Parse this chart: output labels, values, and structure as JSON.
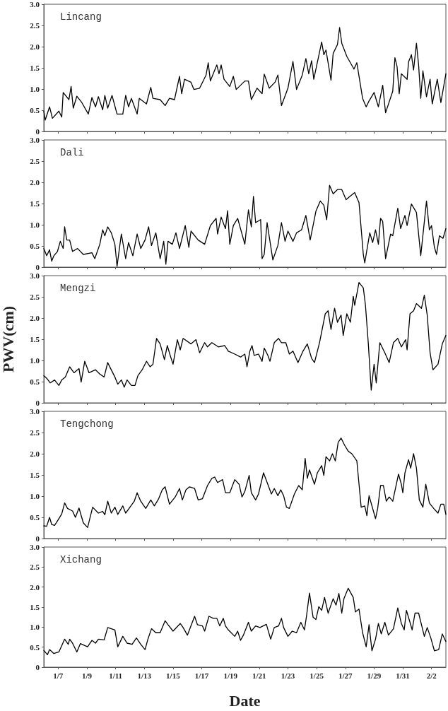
{
  "chart_data": [
    {
      "type": "line",
      "title": "Lincang",
      "color": "#000000",
      "marker": "none",
      "line_style": "solid",
      "tick_labels": "y",
      "xlim": [
        "--01-06T00:00",
        "--02-03T00:00"
      ],
      "xticks": [
        {
          "value": "--01-07T00:00",
          "label": "1/7"
        },
        {
          "value": "--01-09T00:00",
          "label": "1/9"
        },
        {
          "value": "--01-11T00:00",
          "label": "1/11"
        },
        {
          "value": "--01-13T00:00",
          "label": "1/13"
        },
        {
          "value": "--01-15T00:00",
          "label": "1/15"
        },
        {
          "value": "--01-17T00:00",
          "label": "1/17"
        },
        {
          "value": "--01-19T00:00",
          "label": "1/19"
        },
        {
          "value": "--01-21T00:00",
          "label": "1/21"
        },
        {
          "value": "--01-23T00:00",
          "label": "1/23"
        },
        {
          "value": "--01-25T00:00",
          "label": "1/25"
        },
        {
          "value": "--01-27T00:00",
          "label": "1/27"
        },
        {
          "value": "--01-29T00:00",
          "label": "1/29"
        },
        {
          "value": "--01-31T00:00",
          "label": "1/31"
        },
        {
          "value": "--02-02T00:00",
          "label": "2/2"
        }
      ],
      "ylim": [
        0,
        3
      ],
      "yticks": [
        0,
        0.5,
        {
          "value": 1,
          "label": "1.0"
        },
        1.5,
        {
          "value": 2,
          "label": "2.0"
        },
        2.5,
        {
          "value": 3,
          "label": "3.0"
        }
      ],
      "x": [
        "--01-06T00:00",
        "--01-06T02:24",
        "--01-06T09:36",
        "--01-06T14:24",
        "--01-07T01:12",
        "--01-07T06:00",
        "--01-07T08:24",
        "--01-07T18:00",
        "--01-07T21:36",
        "--01-08T01:12",
        "--01-08T07:12",
        "--01-08T15:36",
        "--01-09T02:24",
        "--01-09T08:24",
        "--01-09T14:24",
        "--01-09T19:12",
        "--01-10T02:24",
        "--01-10T06:00",
        "--01-10T10:48",
        "--01-10T18:00",
        "--01-11T02:24",
        "--01-11T12:00",
        "--01-11T16:48",
        "--01-11T21:36",
        "--01-12T02:24",
        "--01-12T12:00",
        "--01-12T15:36",
        "--01-13T03:36",
        "--01-13T10:48",
        "--01-13T14:24",
        "--01-14T02:24",
        "--01-14T10:48",
        "--01-14T18:00",
        "--01-15T02:24",
        "--01-15T10:48",
        "--01-15T14:24",
        "--01-15T19:12",
        "--01-16T06:00",
        "--01-16T10:48",
        "--01-16T20:24",
        "--01-17T07:12",
        "--01-17T10:48",
        "--01-17T14:24",
        "--01-18T01:12",
        "--01-18T04:48",
        "--01-18T08:24",
        "--01-18T13:12",
        "--01-18T22:48",
        "--01-19T04:48",
        "--01-19T09:36",
        "--01-20T00:00",
        "--01-20T06:00",
        "--01-20T10:48",
        "--01-20T20:24",
        "--01-21T04:48",
        "--01-21T08:24",
        "--01-21T16:48",
        "--01-22T02:24",
        "--01-22T07:12",
        "--01-22T13:12",
        "--01-23T00:00",
        "--01-23T08:24",
        "--01-23T14:24",
        "--01-24T00:00",
        "--01-24T06:00",
        "--01-24T10:48",
        "--01-24T15:36",
        "--01-24T19:12",
        "--01-25T04:48",
        "--01-25T08:24",
        "--01-25T12:00",
        "--01-25T15:36",
        "--01-26T00:00",
        "--01-26T03:36",
        "--01-26T10:48",
        "--01-26T14:24",
        "--01-26T18:00",
        "--01-27T02:24",
        "--01-27T14:24",
        "--01-27T19:12",
        "--01-28T04:48",
        "--01-28T10:48",
        "--01-28T15:36",
        "--01-29T00:00",
        "--01-29T07:12",
        "--01-29T14:24",
        "--01-29T19:12",
        "--01-30T07:12",
        "--01-30T10:48",
        "--01-30T14:24",
        "--01-30T18:00",
        "--01-30T21:36",
        "--01-31T07:12",
        "--01-31T09:36",
        "--01-31T14:24",
        "--01-31T18:00",
        "--01-31T22:48",
        "--02-01T02:24",
        "--02-01T06:00",
        "--02-01T09:36",
        "--02-01T15:36",
        "--02-01T21:36",
        "--02-02T01:12",
        "--02-02T09:36",
        "--02-02T15:36",
        "--02-03T00:00"
      ],
      "values": [
        0.48,
        0.27,
        0.58,
        0.31,
        0.48,
        0.34,
        0.92,
        0.75,
        1.06,
        0.55,
        0.83,
        0.68,
        0.41,
        0.8,
        0.58,
        0.82,
        0.51,
        0.85,
        0.55,
        0.85,
        0.41,
        0.41,
        0.85,
        0.58,
        0.78,
        0.41,
        0.78,
        0.65,
        1.04,
        0.78,
        0.75,
        0.61,
        0.78,
        0.75,
        1.3,
        0.89,
        1.23,
        1.16,
        0.99,
        1.02,
        1.33,
        1.62,
        1.19,
        1.57,
        1.36,
        1.57,
        1.23,
        1.06,
        1.3,
        0.99,
        1.19,
        1.19,
        0.75,
        1.02,
        0.89,
        1.35,
        1.02,
        1.16,
        1.33,
        0.61,
        1.02,
        1.65,
        0.99,
        1.33,
        1.72,
        1.36,
        1.67,
        1.23,
        1.87,
        2.11,
        1.81,
        1.92,
        1.21,
        1.84,
        2.05,
        2.45,
        2.08,
        1.77,
        1.47,
        1.62,
        0.78,
        0.58,
        0.72,
        0.92,
        0.58,
        1.09,
        0.44,
        0.95,
        1.74,
        1.53,
        0.89,
        1.36,
        1.23,
        1.64,
        1.81,
        1.45,
        2.08,
        1.57,
        0.78,
        1.43,
        0.82,
        1.23,
        0.65,
        1.23,
        0.68,
        1.36
      ]
    },
    {
      "type": "line",
      "title": "Dali",
      "color": "#000000",
      "marker": "none",
      "line_style": "solid",
      "tick_labels": "y",
      "xlim": [
        "--01-06T00:00",
        "--02-03T00:00"
      ],
      "xticks": [
        {
          "value": "--01-07T00:00",
          "label": "1/7"
        },
        {
          "value": "--01-09T00:00",
          "label": "1/9"
        },
        {
          "value": "--01-11T00:00",
          "label": "1/11"
        },
        {
          "value": "--01-13T00:00",
          "label": "1/13"
        },
        {
          "value": "--01-15T00:00",
          "label": "1/15"
        },
        {
          "value": "--01-17T00:00",
          "label": "1/17"
        },
        {
          "value": "--01-19T00:00",
          "label": "1/19"
        },
        {
          "value": "--01-21T00:00",
          "label": "1/21"
        },
        {
          "value": "--01-23T00:00",
          "label": "1/23"
        },
        {
          "value": "--01-25T00:00",
          "label": "1/25"
        },
        {
          "value": "--01-27T00:00",
          "label": "1/27"
        },
        {
          "value": "--01-29T00:00",
          "label": "1/29"
        },
        {
          "value": "--01-31T00:00",
          "label": "1/31"
        },
        {
          "value": "--02-02T00:00",
          "label": "2/2"
        }
      ],
      "ylim": [
        0,
        3
      ],
      "yticks": [
        0,
        0.5,
        {
          "value": 1,
          "label": "1.0"
        },
        1.5,
        {
          "value": 2,
          "label": "2.0"
        },
        2.5,
        {
          "value": 3,
          "label": "3.0"
        }
      ],
      "x": [
        "--01-06T00:00",
        "--01-06T04:48",
        "--01-06T09:36",
        "--01-06T13:12",
        "--01-06T16:48",
        "--01-06T22:48",
        "--01-07T03:36",
        "--01-07T08:24",
        "--01-07T10:48",
        "--01-07T14:24",
        "--01-07T19:12",
        "--01-08T00:00",
        "--01-08T08:24",
        "--01-08T18:00",
        "--01-09T08:24",
        "--01-09T13:12",
        "--01-09T21:36",
        "--01-10T02:24",
        "--01-10T06:00",
        "--01-10T10:48",
        "--01-10T16:48",
        "--01-10T22:48",
        "--01-11T02:24",
        "--01-11T09:36",
        "--01-11T16:48",
        "--01-11T21:36",
        "--01-12T04:48",
        "--01-12T12:00",
        "--01-12T18:00",
        "--01-13T01:12",
        "--01-13T07:12",
        "--01-13T12:00",
        "--01-13T19:12",
        "--01-14T02:24",
        "--01-14T08:24",
        "--01-14T12:00",
        "--01-14T15:36",
        "--01-14T22:48",
        "--01-15T04:48",
        "--01-15T10:48",
        "--01-15T20:24",
        "--01-16T02:24",
        "--01-16T06:00",
        "--01-16T18:00",
        "--01-17T04:48",
        "--01-17T14:24",
        "--01-18T00:00",
        "--01-18T02:24",
        "--01-18T08:24",
        "--01-18T15:36",
        "--01-18T19:12",
        "--01-18T22:48",
        "--01-19T04:48",
        "--01-19T12:00",
        "--01-20T00:00",
        "--01-20T06:00",
        "--01-20T10:48",
        "--01-20T14:24",
        "--01-20T18:00",
        "--01-21T02:24",
        "--01-21T04:48",
        "--01-21T08:24",
        "--01-21T13:12",
        "--01-21T22:48",
        "--01-22T07:12",
        "--01-22T13:12",
        "--01-22T19:12",
        "--01-23T00:00",
        "--01-23T08:24",
        "--01-23T14:24",
        "--01-23T22:48",
        "--01-24T06:00",
        "--01-24T13:12",
        "--01-24T22:48",
        "--01-25T06:00",
        "--01-25T12:00",
        "--01-25T16:48",
        "--01-25T21:36",
        "--01-26T03:36",
        "--01-26T10:48",
        "--01-26T18:00",
        "--01-27T01:12",
        "--01-27T09:36",
        "--01-27T15:36",
        "--01-27T22:48",
        "--01-28T06:00",
        "--01-28T08:24",
        "--01-28T16:48",
        "--01-28T21:36",
        "--01-29T02:24",
        "--01-29T07:12",
        "--01-29T10:48",
        "--01-29T14:24",
        "--01-29T19:12",
        "--01-30T03:36",
        "--01-30T07:12",
        "--01-30T15:36",
        "--01-30T20:24",
        "--01-31T03:36",
        "--01-31T07:12",
        "--01-31T14:24",
        "--01-31T22:48",
        "--02-01T06:00",
        "--02-01T10:48",
        "--02-01T15:36",
        "--02-01T20:24",
        "--02-02T00:00",
        "--02-02T04:48",
        "--02-02T08:24",
        "--02-02T13:12",
        "--02-02T19:12",
        "--02-03T00:00"
      ],
      "values": [
        0.44,
        0.27,
        0.41,
        0.14,
        0.27,
        0.37,
        0.61,
        0.44,
        0.95,
        0.64,
        0.64,
        0.37,
        0.44,
        0.3,
        0.34,
        0.2,
        0.54,
        0.88,
        0.74,
        0.95,
        0.81,
        0.54,
        0.02,
        0.78,
        0.2,
        0.58,
        0.27,
        0.78,
        0.44,
        0.64,
        0.95,
        0.51,
        0.81,
        0.2,
        0.61,
        0.07,
        0.61,
        0.54,
        0.81,
        0.44,
        0.98,
        0.47,
        0.85,
        0.64,
        0.54,
        0.98,
        1.15,
        0.78,
        1.18,
        0.91,
        1.33,
        0.54,
        0.98,
        1.15,
        0.54,
        1.35,
        0.95,
        1.67,
        1.05,
        1.12,
        0.2,
        0.3,
        1.05,
        0.17,
        0.51,
        1.05,
        0.61,
        0.85,
        0.61,
        0.81,
        0.88,
        1.22,
        0.64,
        1.32,
        1.56,
        1.46,
        1.12,
        1.93,
        1.73,
        1.83,
        1.83,
        1.59,
        1.69,
        1.76,
        1.52,
        0.3,
        0.1,
        0.81,
        0.58,
        0.88,
        0.54,
        1.15,
        1.08,
        0.2,
        0.78,
        0.74,
        1.39,
        0.91,
        1.22,
        0.98,
        1.49,
        1.29,
        0.27,
        0.91,
        1.56,
        0.88,
        0.98,
        0.47,
        0.3,
        0.74,
        0.68,
        0.91
      ]
    },
    {
      "type": "line",
      "title": "Mengzi",
      "ylabel": "PWV(cm)",
      "color": "#000000",
      "marker": "none",
      "line_style": "solid",
      "tick_labels": "y",
      "xlim": [
        "--01-06T00:00",
        "--02-03T00:00"
      ],
      "xticks": [
        {
          "value": "--01-07T00:00",
          "label": "1/7"
        },
        {
          "value": "--01-09T00:00",
          "label": "1/9"
        },
        {
          "value": "--01-11T00:00",
          "label": "1/11"
        },
        {
          "value": "--01-13T00:00",
          "label": "1/13"
        },
        {
          "value": "--01-15T00:00",
          "label": "1/15"
        },
        {
          "value": "--01-17T00:00",
          "label": "1/17"
        },
        {
          "value": "--01-19T00:00",
          "label": "1/19"
        },
        {
          "value": "--01-21T00:00",
          "label": "1/21"
        },
        {
          "value": "--01-23T00:00",
          "label": "1/23"
        },
        {
          "value": "--01-25T00:00",
          "label": "1/25"
        },
        {
          "value": "--01-27T00:00",
          "label": "1/27"
        },
        {
          "value": "--01-29T00:00",
          "label": "1/29"
        },
        {
          "value": "--01-31T00:00",
          "label": "1/31"
        },
        {
          "value": "--02-02T00:00",
          "label": "2/2"
        }
      ],
      "ylim": [
        0,
        3
      ],
      "yticks": [
        0,
        0.5,
        {
          "value": 1,
          "label": "1.0"
        },
        1.5,
        {
          "value": 2,
          "label": "2.0"
        },
        2.5,
        {
          "value": 3,
          "label": "3.0"
        }
      ],
      "x": [
        "--01-06T00:00",
        "--01-06T04:48",
        "--01-06T10:48",
        "--01-06T18:00",
        "--01-07T01:12",
        "--01-07T06:00",
        "--01-07T12:00",
        "--01-07T19:12",
        "--01-08T02:24",
        "--01-08T10:48",
        "--01-08T14:24",
        "--01-08T20:24",
        "--01-09T03:36",
        "--01-09T14:24",
        "--01-09T21:36",
        "--01-10T04:48",
        "--01-10T10:48",
        "--01-10T15:36",
        "--01-10T22:48",
        "--01-11T03:36",
        "--01-11T09:36",
        "--01-11T14:24",
        "--01-11T19:12",
        "--01-12T02:24",
        "--01-12T08:24",
        "--01-12T13:12",
        "--01-12T20:24",
        "--01-13T03:36",
        "--01-13T09:36",
        "--01-13T14:24",
        "--01-13T20:24",
        "--01-14T02:24",
        "--01-14T09:36",
        "--01-14T14:24",
        "--01-14T19:12",
        "--01-15T00:00",
        "--01-15T07:12",
        "--01-15T12:00",
        "--01-15T16:48",
        "--01-16T06:00",
        "--01-16T14:24",
        "--01-16T20:24",
        "--01-17T04:48",
        "--01-17T09:36",
        "--01-17T16:48",
        "--01-18T03:36",
        "--01-18T14:24",
        "--01-18T20:24",
        "--01-19T07:12",
        "--01-19T16:48",
        "--01-20T00:00",
        "--01-20T03:36",
        "--01-20T08:24",
        "--01-20T12:00",
        "--01-20T15:36",
        "--01-20T22:48",
        "--01-21T04:48",
        "--01-21T08:24",
        "--01-21T14:24",
        "--01-21T18:00",
        "--01-22T01:12",
        "--01-22T08:24",
        "--01-22T13:12",
        "--01-22T20:24",
        "--01-23T02:24",
        "--01-23T08:24",
        "--01-23T16:48",
        "--01-24T01:12",
        "--01-24T08:24",
        "--01-24T15:36",
        "--01-24T20:24",
        "--01-25T04:48",
        "--01-25T14:24",
        "--01-25T19:12",
        "--01-26T00:00",
        "--01-26T06:00",
        "--01-26T10:48",
        "--01-26T16:48",
        "--01-26T20:24",
        "--01-27T02:24",
        "--01-27T08:24",
        "--01-27T13:12",
        "--01-27T15:36",
        "--01-27T22:48",
        "--01-28T06:00",
        "--01-28T09:36",
        "--01-28T14:24",
        "--01-28T19:12",
        "--01-29T00:00",
        "--01-29T03:36",
        "--01-29T09:36",
        "--01-29T18:00",
        "--01-30T01:12",
        "--01-30T08:24",
        "--01-30T15:36",
        "--01-30T21:36",
        "--01-31T04:48",
        "--01-31T07:12",
        "--01-31T12:00",
        "--01-31T18:00",
        "--01-31T22:48",
        "--02-01T07:12",
        "--02-01T12:00",
        "--02-01T16:48",
        "--02-01T21:36",
        "--02-02T02:24",
        "--02-02T10:48",
        "--02-02T18:00",
        "--02-03T00:00"
      ],
      "values": [
        0.64,
        0.58,
        0.47,
        0.54,
        0.41,
        0.54,
        0.61,
        0.85,
        0.71,
        0.81,
        0.49,
        0.98,
        0.71,
        0.78,
        0.68,
        0.61,
        0.95,
        0.81,
        0.61,
        0.44,
        0.54,
        0.37,
        0.54,
        0.41,
        0.41,
        0.64,
        0.78,
        0.98,
        0.85,
        0.91,
        1.52,
        1.39,
        1.02,
        1.35,
        1.12,
        0.91,
        1.49,
        1.25,
        1.52,
        1.39,
        1.49,
        1.18,
        1.42,
        1.32,
        1.42,
        1.32,
        1.35,
        1.22,
        1.15,
        1.08,
        1.15,
        0.85,
        1.22,
        1.35,
        1.12,
        1.15,
        0.98,
        1.29,
        1.12,
        0.98,
        1.42,
        1.52,
        1.42,
        1.42,
        1.15,
        1.22,
        0.95,
        1.22,
        1.39,
        1.05,
        0.95,
        1.42,
        2.1,
        2.17,
        1.73,
        2.23,
        1.9,
        2.07,
        1.59,
        2.1,
        1.9,
        2.51,
        2.3,
        2.84,
        2.71,
        2.3,
        1.39,
        0.3,
        0.91,
        0.47,
        1.42,
        1.18,
        0.95,
        1.42,
        1.52,
        1.32,
        1.49,
        1.25,
        2.1,
        2.17,
        2.34,
        2.23,
        2.54,
        2.07,
        1.18,
        0.78,
        0.91,
        1.39,
        1.59
      ]
    },
    {
      "type": "line",
      "title": "Tengchong",
      "color": "#000000",
      "marker": "none",
      "line_style": "solid",
      "tick_labels": "y",
      "xlim": [
        "--01-06T00:00",
        "--02-03T00:00"
      ],
      "xticks": [
        {
          "value": "--01-07T00:00",
          "label": "1/7"
        },
        {
          "value": "--01-09T00:00",
          "label": "1/9"
        },
        {
          "value": "--01-11T00:00",
          "label": "1/11"
        },
        {
          "value": "--01-13T00:00",
          "label": "1/13"
        },
        {
          "value": "--01-15T00:00",
          "label": "1/15"
        },
        {
          "value": "--01-17T00:00",
          "label": "1/17"
        },
        {
          "value": "--01-19T00:00",
          "label": "1/19"
        },
        {
          "value": "--01-21T00:00",
          "label": "1/21"
        },
        {
          "value": "--01-23T00:00",
          "label": "1/23"
        },
        {
          "value": "--01-25T00:00",
          "label": "1/25"
        },
        {
          "value": "--01-27T00:00",
          "label": "1/27"
        },
        {
          "value": "--01-29T00:00",
          "label": "1/29"
        },
        {
          "value": "--01-31T00:00",
          "label": "1/31"
        },
        {
          "value": "--02-02T00:00",
          "label": "2/2"
        }
      ],
      "ylim": [
        0,
        3
      ],
      "yticks": [
        0,
        0.5,
        {
          "value": 1,
          "label": "1.0"
        },
        1.5,
        {
          "value": 2,
          "label": "2.0"
        },
        2.5,
        {
          "value": 3,
          "label": "3.0"
        }
      ],
      "x": [
        "--01-06T00:00",
        "--01-06T04:48",
        "--01-06T09:36",
        "--01-06T13:12",
        "--01-06T18:00",
        "--01-07T01:12",
        "--01-07T06:00",
        "--01-07T10:48",
        "--01-07T15:36",
        "--01-08T00:00",
        "--01-08T04:48",
        "--01-08T10:48",
        "--01-08T18:00",
        "--01-09T01:12",
        "--01-09T09:36",
        "--01-09T19:12",
        "--01-10T02:24",
        "--01-10T06:00",
        "--01-10T10:48",
        "--01-10T16:48",
        "--01-10T22:48",
        "--01-11T03:36",
        "--01-11T12:00",
        "--01-11T16:48",
        "--01-12T00:00",
        "--01-12T07:12",
        "--01-12T12:00",
        "--01-12T18:00",
        "--01-13T02:24",
        "--01-13T10:48",
        "--01-13T16:48",
        "--01-14T00:00",
        "--01-14T06:00",
        "--01-14T10:48",
        "--01-14T18:00",
        "--01-15T03:36",
        "--01-15T10:48",
        "--01-15T15:36",
        "--01-15T21:36",
        "--01-16T03:36",
        "--01-16T12:00",
        "--01-16T18:00",
        "--01-17T01:12",
        "--01-17T09:36",
        "--01-17T16:48",
        "--01-17T21:36",
        "--01-18T02:24",
        "--01-18T10:48",
        "--01-18T15:36",
        "--01-18T22:48",
        "--01-19T07:12",
        "--01-19T14:24",
        "--01-19T19:12",
        "--01-20T00:00",
        "--01-20T07:12",
        "--01-20T10:48",
        "--01-20T18:00",
        "--01-20T22:48",
        "--01-21T07:12",
        "--01-21T14:24",
        "--01-21T20:24",
        "--01-22T01:12",
        "--01-22T07:12",
        "--01-22T12:00",
        "--01-22T16:48",
        "--01-22T21:36",
        "--01-23T02:24",
        "--01-23T10:48",
        "--01-23T18:00",
        "--01-24T00:00",
        "--01-24T04:48",
        "--01-24T08:24",
        "--01-24T12:00",
        "--01-24T20:24",
        "--01-25T01:12",
        "--01-25T08:24",
        "--01-25T12:00",
        "--01-25T15:36",
        "--01-25T21:36",
        "--01-26T02:24",
        "--01-26T07:12",
        "--01-26T12:00",
        "--01-26T16:48",
        "--01-26T22:48",
        "--01-27T04:48",
        "--01-27T10:48",
        "--01-27T19:12",
        "--01-28T02:24",
        "--01-28T08:24",
        "--01-28T12:00",
        "--01-28T15:36",
        "--01-28T20:24",
        "--01-29T02:24",
        "--01-29T06:00",
        "--01-29T10:48",
        "--01-29T15:36",
        "--01-29T20:24",
        "--01-30T01:12",
        "--01-30T07:12",
        "--01-30T16:48",
        "--01-30T21:36",
        "--01-31T00:00",
        "--01-31T03:36",
        "--01-31T09:36",
        "--01-31T13:12",
        "--01-31T18:00",
        "--01-31T22:48",
        "--02-01T03:36",
        "--02-01T09:36",
        "--02-01T14:24",
        "--02-01T20:24",
        "--02-02T03:36",
        "--02-02T10:48",
        "--02-02T15:36",
        "--02-02T20:24",
        "--02-03T00:00"
      ],
      "values": [
        0.3,
        0.29,
        0.5,
        0.33,
        0.31,
        0.47,
        0.58,
        0.84,
        0.71,
        0.65,
        0.5,
        0.72,
        0.37,
        0.26,
        0.74,
        0.6,
        0.64,
        0.56,
        0.88,
        0.6,
        0.74,
        0.57,
        0.77,
        0.6,
        0.74,
        0.88,
        1.08,
        0.88,
        0.71,
        0.91,
        0.77,
        0.94,
        1.15,
        1.22,
        0.81,
        0.98,
        1.18,
        0.91,
        1.15,
        1.22,
        1.18,
        0.91,
        0.94,
        1.25,
        1.42,
        1.45,
        1.32,
        1.39,
        1.08,
        1.08,
        1.39,
        1.28,
        0.98,
        1.11,
        1.49,
        1.08,
        0.91,
        1.05,
        1.55,
        1.28,
        1.05,
        1.18,
        1.01,
        1.15,
        1.01,
        0.74,
        0.71,
        1.05,
        1.25,
        1.15,
        1.89,
        1.42,
        1.62,
        1.28,
        1.55,
        1.72,
        1.49,
        1.93,
        1.83,
        2.0,
        1.83,
        2.27,
        2.37,
        2.2,
        2.06,
        2.0,
        1.83,
        0.74,
        0.77,
        0.54,
        1.01,
        0.77,
        0.47,
        0.71,
        1.25,
        1.25,
        0.88,
        0.98,
        0.88,
        1.52,
        1.28,
        1.08,
        1.55,
        1.86,
        1.66,
        2.0,
        1.66,
        0.91,
        0.74,
        1.28,
        0.84,
        0.71,
        0.6,
        0.81,
        0.81,
        0.57
      ]
    },
    {
      "type": "line",
      "title": "Xichang",
      "xlabel": "Date",
      "color": "#000000",
      "marker": "none",
      "line_style": "solid",
      "xlim": [
        "--01-06T00:00",
        "--02-03T00:00"
      ],
      "xticks": [
        {
          "value": "--01-07T00:00",
          "label": "1/7"
        },
        {
          "value": "--01-09T00:00",
          "label": "1/9"
        },
        {
          "value": "--01-11T00:00",
          "label": "1/11"
        },
        {
          "value": "--01-13T00:00",
          "label": "1/13"
        },
        {
          "value": "--01-15T00:00",
          "label": "1/15"
        },
        {
          "value": "--01-17T00:00",
          "label": "1/17"
        },
        {
          "value": "--01-19T00:00",
          "label": "1/19"
        },
        {
          "value": "--01-21T00:00",
          "label": "1/21"
        },
        {
          "value": "--01-23T00:00",
          "label": "1/23"
        },
        {
          "value": "--01-25T00:00",
          "label": "1/25"
        },
        {
          "value": "--01-27T00:00",
          "label": "1/27"
        },
        {
          "value": "--01-29T00:00",
          "label": "1/29"
        },
        {
          "value": "--01-31T00:00",
          "label": "1/31"
        },
        {
          "value": "--02-02T00:00",
          "label": "2/2"
        }
      ],
      "ylim": [
        0,
        3
      ],
      "yticks": [
        0,
        0.5,
        {
          "value": 1,
          "label": "1.0"
        },
        1.5,
        {
          "value": 2,
          "label": "2.0"
        },
        2.5,
        {
          "value": 3,
          "label": "3.0"
        }
      ],
      "x": [
        "--01-06T00:00",
        "--01-06T06:00",
        "--01-06T09:36",
        "--01-06T16:48",
        "--01-07T01:12",
        "--01-07T06:00",
        "--01-07T10:48",
        "--01-07T16:48",
        "--01-07T19:12",
        "--01-08T00:00",
        "--01-08T07:12",
        "--01-08T13:12",
        "--01-08T20:24",
        "--01-09T01:12",
        "--01-09T08:24",
        "--01-09T14:24",
        "--01-09T19:12",
        "--01-10T04:48",
        "--01-10T10:48",
        "--01-10T22:48",
        "--01-11T03:36",
        "--01-11T12:00",
        "--01-11T19:12",
        "--01-12T03:36",
        "--01-12T10:48",
        "--01-12T18:00",
        "--01-13T01:12",
        "--01-13T06:00",
        "--01-13T12:00",
        "--01-13T19:12",
        "--01-14T02:24",
        "--01-14T10:48",
        "--01-14T15:36",
        "--01-15T00:00",
        "--01-15T12:00",
        "--01-15T16:48",
        "--01-16T00:00",
        "--01-16T12:00",
        "--01-16T16:48",
        "--01-17T01:12",
        "--01-17T04:48",
        "--01-17T12:00",
        "--01-17T19:12",
        "--01-18T01:12",
        "--01-18T06:00",
        "--01-18T12:00",
        "--01-18T15:36",
        "--01-18T20:24",
        "--01-19T07:12",
        "--01-19T12:00",
        "--01-19T16:48",
        "--01-19T21:36",
        "--01-20T06:00",
        "--01-20T10:48",
        "--01-20T18:00",
        "--01-21T01:12",
        "--01-21T12:00",
        "--01-21T19:12",
        "--01-22T01:12",
        "--01-22T08:24",
        "--01-22T13:12",
        "--01-22T16:48",
        "--01-23T00:00",
        "--01-23T07:12",
        "--01-23T14:24",
        "--01-23T21:36",
        "--01-24T03:36",
        "--01-24T07:12",
        "--01-24T12:00",
        "--01-24T18:00",
        "--01-24T22:48",
        "--01-25T03:36",
        "--01-25T08:24",
        "--01-25T13:12",
        "--01-25T19:12",
        "--01-26T03:36",
        "--01-26T08:24",
        "--01-26T13:12",
        "--01-26T18:00",
        "--01-26T21:36",
        "--01-27T04:48",
        "--01-27T13:12",
        "--01-27T16:48",
        "--01-27T22:48",
        "--01-28T04:48",
        "--01-28T10:48",
        "--01-28T15:36",
        "--01-28T20:24",
        "--01-29T02:24",
        "--01-29T07:12",
        "--01-29T12:00",
        "--01-29T18:00",
        "--01-30T00:00",
        "--01-30T08:24",
        "--01-30T15:36",
        "--01-30T21:36",
        "--01-31T02:24",
        "--01-31T06:00",
        "--01-31T12:00",
        "--01-31T15:36",
        "--01-31T20:24",
        "--02-01T02:24",
        "--02-01T12:00",
        "--02-01T16:48",
        "--02-01T22:48",
        "--02-02T04:48",
        "--02-02T12:00",
        "--02-02T18:00",
        "--02-03T00:00"
      ],
      "values": [
        0.42,
        0.31,
        0.44,
        0.34,
        0.38,
        0.54,
        0.7,
        0.57,
        0.7,
        0.6,
        0.38,
        0.59,
        0.54,
        0.51,
        0.67,
        0.6,
        0.7,
        0.68,
        0.99,
        0.93,
        0.51,
        0.77,
        0.6,
        0.57,
        0.73,
        0.57,
        0.44,
        0.7,
        0.96,
        0.86,
        0.86,
        1.16,
        1.06,
        0.9,
        1.09,
        0.99,
        0.8,
        1.27,
        1.06,
        1.03,
        0.9,
        1.27,
        1.22,
        1.22,
        1.03,
        1.22,
        1.03,
        0.93,
        0.77,
        0.9,
        0.67,
        0.8,
        1.12,
        0.9,
        1.03,
        0.99,
        1.07,
        0.7,
        0.99,
        1.03,
        1.22,
        0.99,
        0.77,
        0.9,
        0.86,
        1.12,
        0.93,
        1.29,
        1.85,
        1.25,
        1.19,
        1.51,
        1.42,
        1.74,
        1.35,
        1.71,
        1.55,
        1.84,
        1.35,
        1.71,
        1.97,
        1.74,
        1.38,
        1.45,
        0.86,
        0.51,
        1.06,
        0.41,
        0.7,
        1.09,
        0.83,
        1.12,
        0.8,
        0.96,
        1.48,
        1.09,
        0.93,
        1.42,
        1.12,
        0.93,
        1.35,
        1.35,
        0.77,
        0.99,
        0.73,
        0.41,
        0.44,
        0.83,
        0.64
      ]
    }
  ]
}
